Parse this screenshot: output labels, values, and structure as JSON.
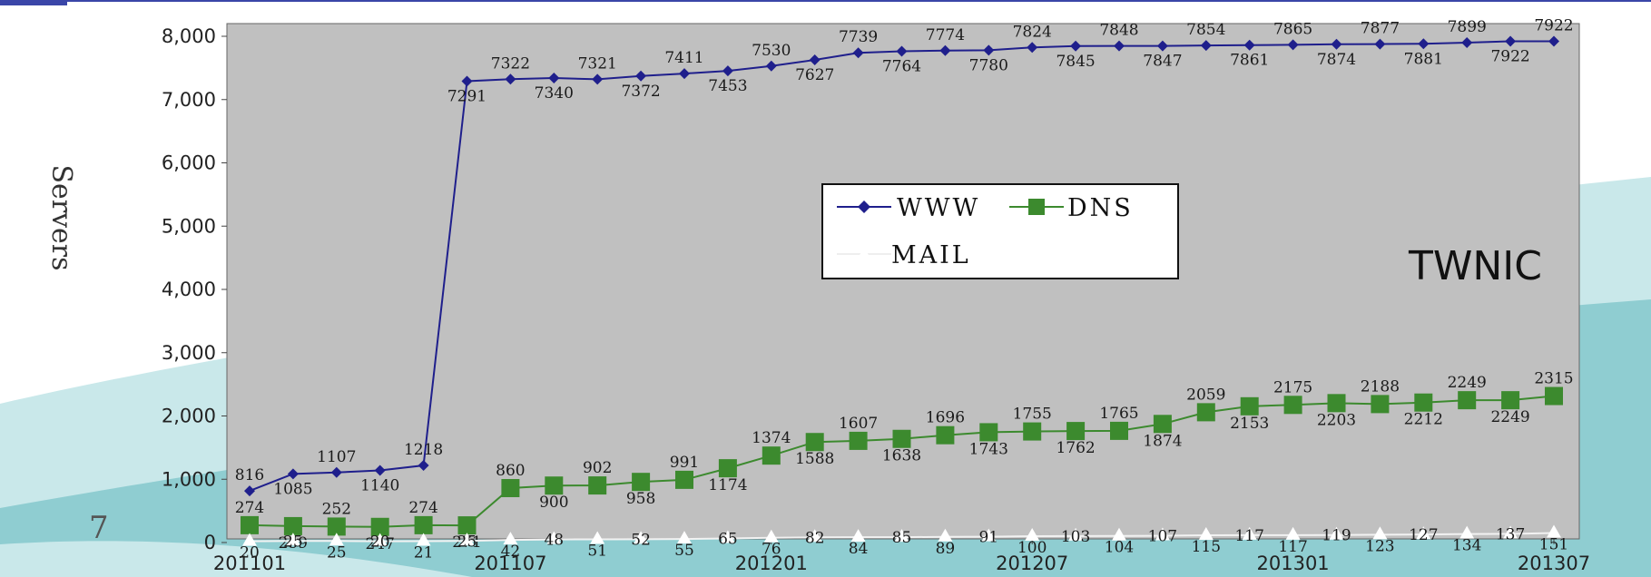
{
  "slide": {
    "number": "7",
    "watermark": "TWNIC"
  },
  "chart_data": {
    "type": "line",
    "ylabel": "Servers",
    "ylim": [
      0,
      8000
    ],
    "yticks": [
      "0",
      "1,000",
      "2,000",
      "3,000",
      "4,000",
      "5,000",
      "6,000",
      "7,000",
      "8,000"
    ],
    "xtick_labels": [
      "201101",
      "201107",
      "201201",
      "201207",
      "201301",
      "201307"
    ],
    "xtick_indices": [
      0,
      6,
      12,
      18,
      24,
      30
    ],
    "grid": false,
    "legend_position": "center-right",
    "categories": [
      "201101",
      "201102",
      "201103",
      "201104",
      "201105",
      "201106",
      "201107",
      "201108",
      "201109",
      "201110",
      "201111",
      "201112",
      "201201",
      "201202",
      "201203",
      "201204",
      "201205",
      "201206",
      "201207",
      "201208",
      "201209",
      "201210",
      "201211",
      "201212",
      "201301",
      "201302",
      "201303",
      "201304",
      "201305",
      "201306",
      "201307"
    ],
    "series": [
      {
        "name": "WWW",
        "color": "#1f1f8c",
        "marker": "diamond",
        "values": [
          816,
          1085,
          1107,
          1140,
          1218,
          7291,
          7322,
          7340,
          7321,
          7372,
          7411,
          7453,
          7530,
          7627,
          7739,
          7764,
          7774,
          7780,
          7824,
          7845,
          7848,
          7847,
          7854,
          7861,
          7865,
          7874,
          7877,
          7881,
          7899,
          7922,
          7922
        ]
      },
      {
        "name": "DNS",
        "color": "#3c8a2e",
        "marker": "square",
        "values": [
          274,
          259,
          252,
          247,
          274,
          271,
          860,
          900,
          902,
          958,
          991,
          1174,
          1374,
          1588,
          1607,
          1638,
          1696,
          1743,
          1755,
          1762,
          1765,
          1874,
          2059,
          2153,
          2175,
          2203,
          2188,
          2212,
          2249,
          2249,
          2315
        ]
      },
      {
        "name": "MAIL",
        "color": "#ffffff",
        "marker": "triangle",
        "values": [
          20,
          25,
          25,
          20,
          21,
          25,
          42,
          48,
          51,
          52,
          55,
          65,
          76,
          82,
          84,
          85,
          89,
          91,
          100,
          103,
          104,
          107,
          115,
          117,
          117,
          119,
          123,
          127,
          134,
          137,
          151
        ]
      }
    ]
  }
}
